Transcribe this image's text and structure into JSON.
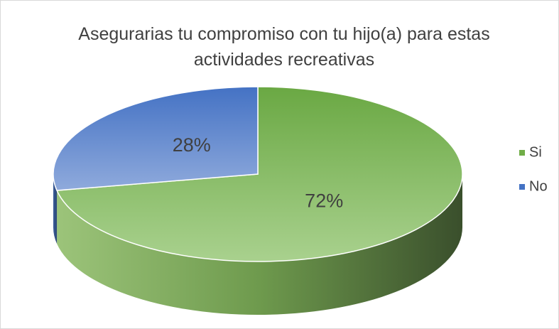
{
  "chart_data": {
    "type": "pie",
    "title": "Asegurarias tu compromiso con tu hijo(a) para estas actividades recreativas",
    "categories": [
      "Si",
      "No"
    ],
    "values": [
      72,
      28
    ],
    "value_labels": [
      "72%",
      "28%"
    ],
    "colors": [
      "#70ad47",
      "#4472c4"
    ],
    "legend": "right"
  }
}
